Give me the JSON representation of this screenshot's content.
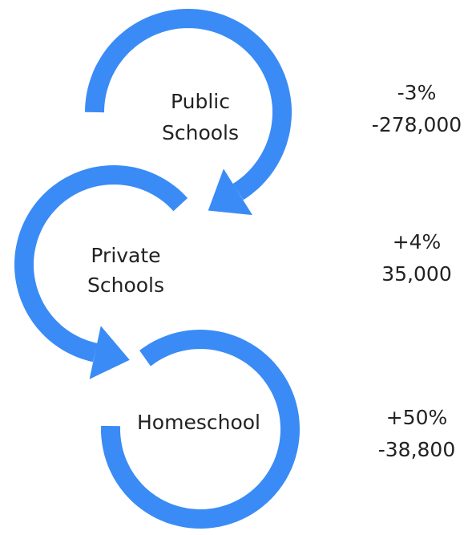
{
  "nodes": [
    {
      "label": [
        "Public",
        "Schools"
      ],
      "stats": [
        "-3%",
        "-278,000"
      ]
    },
    {
      "label": [
        "Private",
        "Schools"
      ],
      "stats": [
        "+4%",
        "35,000"
      ]
    },
    {
      "label": [
        "Homeschool"
      ],
      "stats": [
        "+50%",
        "-38,800"
      ]
    }
  ]
}
